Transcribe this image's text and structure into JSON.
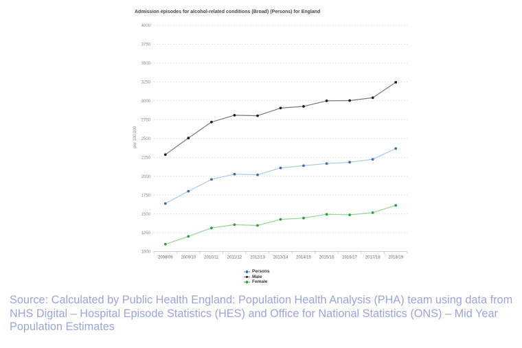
{
  "chart_data": {
    "type": "line",
    "title": "Admission episodes for alcohol-related conditions (Broad) (Persons) for England",
    "xlabel": "",
    "ylabel": "per 100,000",
    "categories": [
      "2008/09",
      "2009/10",
      "2010/11",
      "2011/12",
      "2012/13",
      "2013/14",
      "2014/15",
      "2015/16",
      "2016/17",
      "2017/18",
      "2018/19"
    ],
    "ylim": [
      1000,
      4000
    ],
    "ytick_step": 250,
    "grid": "horizontal-dotted",
    "legend_position": "bottom",
    "series": [
      {
        "name": "Persons",
        "color_line": "#a9c7e8",
        "color_marker": "#3b6ea5",
        "values": [
          1637,
          1800,
          1957,
          2027,
          2018,
          2109,
          2139,
          2167,
          2185,
          2224,
          2367
        ]
      },
      {
        "name": "Male",
        "color_line": "#787878",
        "color_marker": "#1f1f1f",
        "values": [
          2286,
          2506,
          2718,
          2808,
          2802,
          2904,
          2926,
          2999,
          3003,
          3040,
          3245
        ]
      },
      {
        "name": "Female",
        "color_line": "#90d793",
        "color_marker": "#2f9e41",
        "values": [
          1097,
          1201,
          1313,
          1356,
          1346,
          1427,
          1444,
          1494,
          1487,
          1516,
          1613
        ]
      }
    ]
  },
  "colors": {
    "grid": "#dcdcdc",
    "axis_line": "#cccccc",
    "axis_text": "#888888",
    "x_label_text": "#666666",
    "title_text": "#454545",
    "legend_text": "#333333",
    "source_text": "#9aa5da"
  },
  "source_note": "Source: Calculated by Public Health England: Population Health Analysis (PHA) team using data from NHS Digital – Hospital Episode Statistics (HES) and Office for National Statistics (ONS) – Mid Year Population Estimates"
}
